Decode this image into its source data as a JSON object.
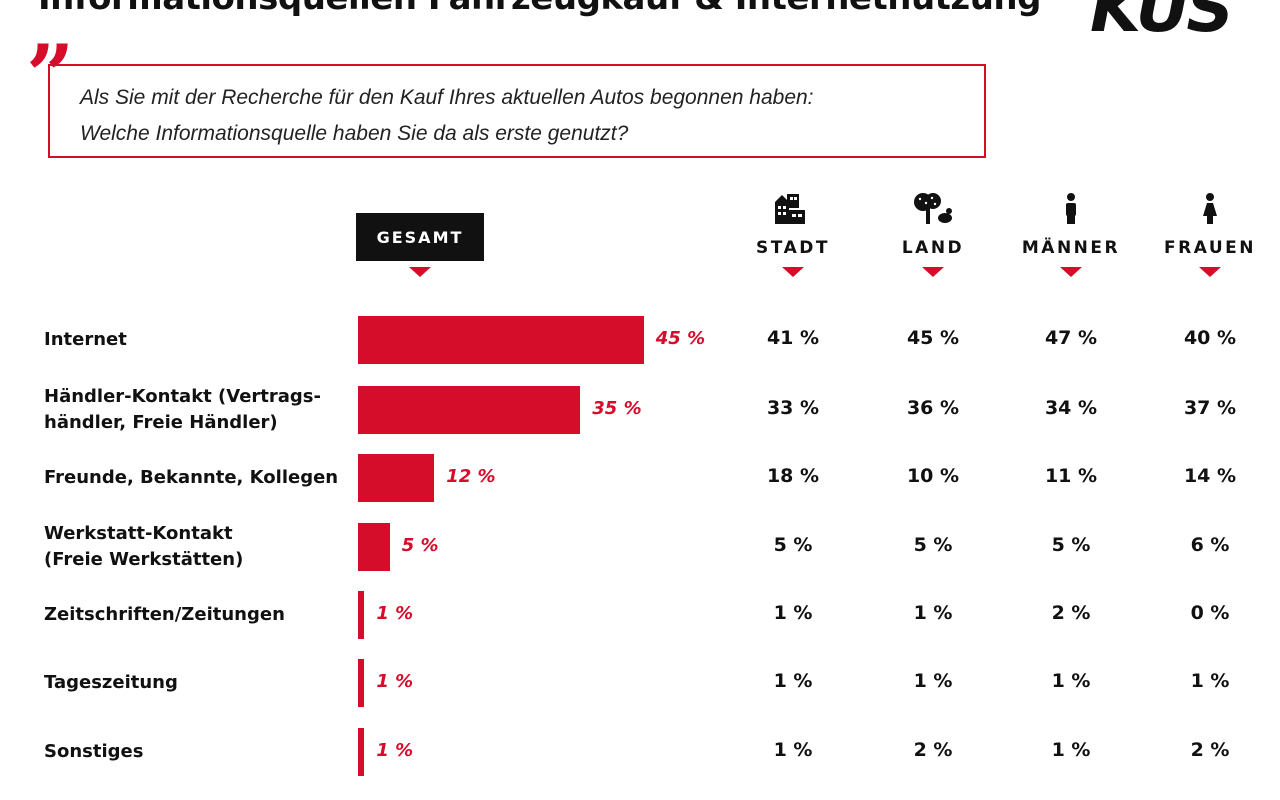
{
  "header": {
    "title": "Informationsquellen Fahrzeugkauf & Internetnutzung",
    "logo_text": "KUS"
  },
  "question": {
    "line1": "Als Sie mit der Recherche für den Kauf Ihres aktuellen Autos begonnen haben:",
    "line2": "Welche Informationsquelle haben Sie da als erste genutzt?"
  },
  "colors": {
    "accent": "#d50c2a",
    "dark": "#111111"
  },
  "chart_data": {
    "type": "bar",
    "orientation": "horizontal",
    "unit": "%",
    "categories": [
      "Internet",
      "Händler-Kontakt (Vertrags-händler, Freie Händler)",
      "Freunde, Bekannte, Kollegen",
      "Werkstatt-Kontakt (Freie Werkstätten)",
      "Zeitschriften/Zeitungen",
      "Tageszeitung",
      "Sonstiges"
    ],
    "category_lines": [
      [
        "Internet"
      ],
      [
        "Händler-Kontakt (Vertrags-",
        "händler, Freie Händler)"
      ],
      [
        "Freunde, Bekannte, Kollegen"
      ],
      [
        "Werkstatt-Kontakt",
        "(Freie Werkstätten)"
      ],
      [
        "Zeitschriften/Zeitungen"
      ],
      [
        "Tageszeitung"
      ],
      [
        "Sonstiges"
      ]
    ],
    "series": [
      {
        "name": "GESAMT",
        "values": [
          45,
          35,
          12,
          5,
          1,
          1,
          1
        ],
        "icon": "none"
      },
      {
        "name": "STADT",
        "values": [
          41,
          33,
          18,
          5,
          1,
          1,
          1
        ],
        "icon": "city-buildings-icon"
      },
      {
        "name": "LAND",
        "values": [
          45,
          36,
          10,
          5,
          1,
          1,
          2
        ],
        "icon": "tree-chicken-icon"
      },
      {
        "name": "MÄNNER",
        "values": [
          47,
          34,
          11,
          5,
          2,
          1,
          1
        ],
        "icon": "man-icon"
      },
      {
        "name": "FRAUEN",
        "values": [
          40,
          37,
          14,
          6,
          0,
          1,
          2
        ],
        "icon": "woman-icon"
      }
    ]
  }
}
